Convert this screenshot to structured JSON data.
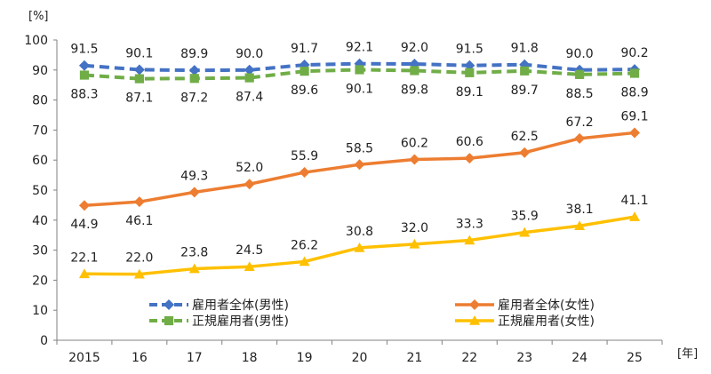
{
  "chart_data": {
    "type": "line",
    "y_unit_label": "[%]",
    "x_unit_label": "[年]",
    "categories": [
      "2015",
      "16",
      "17",
      "18",
      "19",
      "20",
      "21",
      "22",
      "23",
      "24",
      "25"
    ],
    "ylim": [
      0,
      100
    ],
    "yticks": [
      "0",
      "10",
      "20",
      "30",
      "40",
      "50",
      "60",
      "70",
      "80",
      "90",
      "100"
    ],
    "grid": false,
    "legend_position": "bottom-center",
    "series": [
      {
        "name": "雇用者全体(男性)",
        "color": "#4472C4",
        "marker": "diamond",
        "dashed": true,
        "label_side": "above",
        "values": [
          91.5,
          90.1,
          89.9,
          90.0,
          91.7,
          92.1,
          92.0,
          91.5,
          91.8,
          90.0,
          90.2
        ],
        "labels": [
          "91.5",
          "90.1",
          "89.9",
          "90.0",
          "91.7",
          "92.1",
          "92.0",
          "91.5",
          "91.8",
          "90.0",
          "90.2"
        ]
      },
      {
        "name": "正規雇用者(男性)",
        "color": "#70AD47",
        "marker": "square",
        "dashed": true,
        "label_side": "below",
        "values": [
          88.3,
          87.1,
          87.2,
          87.4,
          89.6,
          90.1,
          89.8,
          89.1,
          89.7,
          88.5,
          88.9
        ],
        "labels": [
          "88.3",
          "87.1",
          "87.2",
          "87.4",
          "89.6",
          "90.1",
          "89.8",
          "89.1",
          "89.7",
          "88.5",
          "88.9"
        ]
      },
      {
        "name": "雇用者全体(女性)",
        "color": "#ED7D31",
        "marker": "diamond",
        "dashed": false,
        "label_side": "mixed",
        "values": [
          44.9,
          46.1,
          49.3,
          52.0,
          55.9,
          58.5,
          60.2,
          60.6,
          62.5,
          67.2,
          69.1
        ],
        "labels": [
          "44.9",
          "46.1",
          "49.3",
          "52.0",
          "55.9",
          "58.5",
          "60.2",
          "60.6",
          "62.5",
          "67.2",
          "69.1"
        ]
      },
      {
        "name": "正規雇用者(女性)",
        "color": "#FFC000",
        "marker": "triangle",
        "dashed": false,
        "label_side": "above",
        "values": [
          22.1,
          22.0,
          23.8,
          24.5,
          26.2,
          30.8,
          32.0,
          33.3,
          35.9,
          38.1,
          41.1
        ],
        "labels": [
          "22.1",
          "22.0",
          "23.8",
          "24.5",
          "26.2",
          "30.8",
          "32.0",
          "33.3",
          "35.9",
          "38.1",
          "41.1"
        ]
      }
    ]
  }
}
